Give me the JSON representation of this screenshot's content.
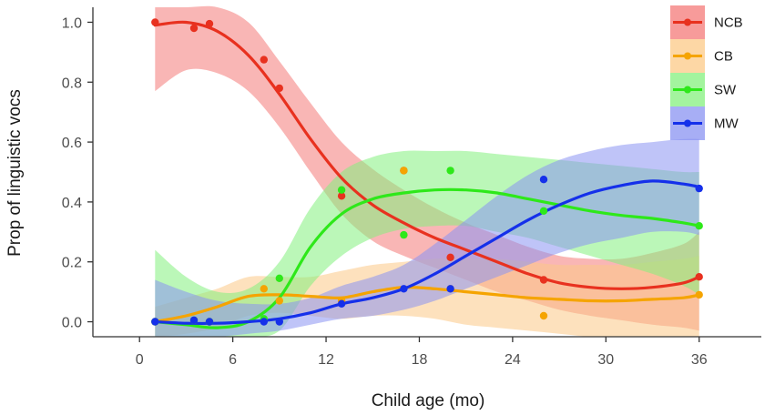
{
  "chart_data": {
    "type": "scatter",
    "title": "",
    "xlabel": "Child age (mo)",
    "ylabel": "Prop of linguistic vocs",
    "xlim": [
      -3,
      40
    ],
    "ylim": [
      -0.05,
      1.05
    ],
    "xticks": [
      0,
      6,
      12,
      18,
      24,
      30,
      36
    ],
    "xtick_labels": [
      "0",
      "6",
      "12",
      "18",
      "24",
      "30",
      "36"
    ],
    "yticks": [
      0,
      0.2,
      0.4,
      0.6,
      0.8,
      1.0
    ],
    "ytick_labels": [
      "0.0",
      "0.2",
      "0.4",
      "0.6",
      "0.8",
      "1.0"
    ],
    "grid": false,
    "legend_position": "top-right",
    "smoothing": "loess with confidence band",
    "series": [
      {
        "name": "NCB",
        "color": "#e8311f",
        "band_color": "#f47a78",
        "points": [
          [
            1,
            1.0
          ],
          [
            3.5,
            0.98
          ],
          [
            4.5,
            0.995
          ],
          [
            8,
            0.875
          ],
          [
            9,
            0.78
          ],
          [
            13,
            0.42
          ],
          [
            17,
            0.505
          ],
          [
            20,
            0.215
          ],
          [
            26,
            0.14
          ],
          [
            36,
            0.15
          ]
        ],
        "curve": [
          [
            1,
            0.99
          ],
          [
            3,
            1.0
          ],
          [
            5,
            0.97
          ],
          [
            7,
            0.89
          ],
          [
            9,
            0.76
          ],
          [
            11,
            0.61
          ],
          [
            13,
            0.48
          ],
          [
            15,
            0.39
          ],
          [
            17,
            0.33
          ],
          [
            19,
            0.28
          ],
          [
            21,
            0.24
          ],
          [
            23,
            0.2
          ],
          [
            25,
            0.16
          ],
          [
            27,
            0.13
          ],
          [
            29,
            0.115
          ],
          [
            31,
            0.11
          ],
          [
            33,
            0.115
          ],
          [
            35,
            0.13
          ],
          [
            36,
            0.15
          ]
        ],
        "lower": [
          [
            1,
            0.77
          ],
          [
            3,
            0.84
          ],
          [
            5,
            0.83
          ],
          [
            7,
            0.77
          ],
          [
            9,
            0.65
          ],
          [
            11,
            0.5
          ],
          [
            13,
            0.36
          ],
          [
            15,
            0.27
          ],
          [
            17,
            0.22
          ],
          [
            19,
            0.18
          ],
          [
            21,
            0.14
          ],
          [
            23,
            0.1
          ],
          [
            25,
            0.07
          ],
          [
            27,
            0.04
          ],
          [
            29,
            0.02
          ],
          [
            31,
            0.005
          ],
          [
            33,
            -0.01
          ],
          [
            35,
            -0.02
          ],
          [
            36,
            -0.03
          ]
        ],
        "upper": [
          [
            1,
            1.05
          ],
          [
            3,
            1.05
          ],
          [
            5,
            1.05
          ],
          [
            7,
            1.0
          ],
          [
            9,
            0.87
          ],
          [
            11,
            0.73
          ],
          [
            13,
            0.6
          ],
          [
            15,
            0.51
          ],
          [
            17,
            0.44
          ],
          [
            19,
            0.38
          ],
          [
            21,
            0.33
          ],
          [
            23,
            0.29
          ],
          [
            25,
            0.25
          ],
          [
            27,
            0.22
          ],
          [
            29,
            0.21
          ],
          [
            31,
            0.21
          ],
          [
            33,
            0.23
          ],
          [
            35,
            0.26
          ],
          [
            36,
            0.3
          ]
        ]
      },
      {
        "name": "CB",
        "color": "#f5a400",
        "band_color": "#fcc987",
        "points": [
          [
            1,
            0.0
          ],
          [
            3.5,
            0.005
          ],
          [
            4.5,
            0.0
          ],
          [
            8,
            0.11
          ],
          [
            9,
            0.07
          ],
          [
            13,
            0.07
          ],
          [
            17,
            0.505
          ],
          [
            20,
            0.11
          ],
          [
            26,
            0.02
          ],
          [
            36,
            0.09
          ]
        ],
        "curve": [
          [
            1,
            0.0
          ],
          [
            3,
            0.02
          ],
          [
            5,
            0.05
          ],
          [
            7,
            0.085
          ],
          [
            9,
            0.09
          ],
          [
            11,
            0.085
          ],
          [
            13,
            0.08
          ],
          [
            15,
            0.1
          ],
          [
            17,
            0.115
          ],
          [
            19,
            0.11
          ],
          [
            21,
            0.1
          ],
          [
            23,
            0.09
          ],
          [
            25,
            0.08
          ],
          [
            27,
            0.075
          ],
          [
            29,
            0.07
          ],
          [
            31,
            0.07
          ],
          [
            33,
            0.075
          ],
          [
            35,
            0.08
          ],
          [
            36,
            0.09
          ]
        ],
        "lower": [
          [
            1,
            -0.05
          ],
          [
            3,
            -0.04
          ],
          [
            5,
            -0.02
          ],
          [
            7,
            0.02
          ],
          [
            9,
            0.03
          ],
          [
            11,
            0.02
          ],
          [
            13,
            0.01
          ],
          [
            15,
            0.02
          ],
          [
            17,
            0.02
          ],
          [
            19,
            0.01
          ],
          [
            21,
            -0.01
          ],
          [
            23,
            -0.02
          ],
          [
            25,
            -0.03
          ],
          [
            27,
            -0.04
          ],
          [
            29,
            -0.05
          ],
          [
            31,
            -0.05
          ],
          [
            33,
            -0.05
          ],
          [
            35,
            -0.05
          ],
          [
            36,
            -0.05
          ]
        ],
        "upper": [
          [
            1,
            0.05
          ],
          [
            3,
            0.08
          ],
          [
            5,
            0.11
          ],
          [
            7,
            0.15
          ],
          [
            9,
            0.15
          ],
          [
            11,
            0.15
          ],
          [
            13,
            0.17
          ],
          [
            15,
            0.19
          ],
          [
            17,
            0.2
          ],
          [
            19,
            0.21
          ],
          [
            21,
            0.21
          ],
          [
            23,
            0.21
          ],
          [
            25,
            0.2
          ],
          [
            27,
            0.19
          ],
          [
            29,
            0.19
          ],
          [
            31,
            0.19
          ],
          [
            33,
            0.2
          ],
          [
            35,
            0.21
          ],
          [
            36,
            0.22
          ]
        ]
      },
      {
        "name": "SW",
        "color": "#2ee81a",
        "band_color": "#84f07e",
        "points": [
          [
            1,
            0.0
          ],
          [
            3.5,
            0.005
          ],
          [
            4.5,
            0.0
          ],
          [
            8,
            0.01
          ],
          [
            9,
            0.145
          ],
          [
            13,
            0.44
          ],
          [
            17,
            0.29
          ],
          [
            20,
            0.505
          ],
          [
            26,
            0.37
          ],
          [
            36,
            0.32
          ]
        ],
        "curve": [
          [
            1,
            0.0
          ],
          [
            3,
            -0.01
          ],
          [
            5,
            -0.02
          ],
          [
            7,
            0.0
          ],
          [
            9,
            0.08
          ],
          [
            11,
            0.25
          ],
          [
            13,
            0.36
          ],
          [
            15,
            0.41
          ],
          [
            17,
            0.43
          ],
          [
            19,
            0.44
          ],
          [
            21,
            0.44
          ],
          [
            23,
            0.43
          ],
          [
            25,
            0.41
          ],
          [
            27,
            0.39
          ],
          [
            29,
            0.37
          ],
          [
            31,
            0.355
          ],
          [
            33,
            0.345
          ],
          [
            35,
            0.33
          ],
          [
            36,
            0.32
          ]
        ],
        "lower": [
          [
            1,
            -0.05
          ],
          [
            3,
            -0.05
          ],
          [
            5,
            -0.05
          ],
          [
            7,
            -0.05
          ],
          [
            9,
            -0.03
          ],
          [
            11,
            0.12
          ],
          [
            13,
            0.22
          ],
          [
            15,
            0.28
          ],
          [
            17,
            0.31
          ],
          [
            19,
            0.32
          ],
          [
            21,
            0.32
          ],
          [
            23,
            0.3
          ],
          [
            25,
            0.28
          ],
          [
            27,
            0.25
          ],
          [
            29,
            0.22
          ],
          [
            31,
            0.19
          ],
          [
            33,
            0.16
          ],
          [
            35,
            0.12
          ],
          [
            36,
            0.09
          ]
        ],
        "upper": [
          [
            1,
            0.24
          ],
          [
            3,
            0.15
          ],
          [
            5,
            0.1
          ],
          [
            7,
            0.11
          ],
          [
            9,
            0.2
          ],
          [
            11,
            0.38
          ],
          [
            13,
            0.5
          ],
          [
            15,
            0.55
          ],
          [
            17,
            0.57
          ],
          [
            19,
            0.57
          ],
          [
            21,
            0.57
          ],
          [
            23,
            0.56
          ],
          [
            25,
            0.55
          ],
          [
            27,
            0.54
          ],
          [
            29,
            0.53
          ],
          [
            31,
            0.52
          ],
          [
            33,
            0.51
          ],
          [
            35,
            0.5
          ],
          [
            36,
            0.5
          ]
        ]
      },
      {
        "name": "MW",
        "color": "#1530ea",
        "band_color": "#8a93f2",
        "points": [
          [
            1,
            0.0
          ],
          [
            3.5,
            0.005
          ],
          [
            4.5,
            0.0
          ],
          [
            8,
            0.0
          ],
          [
            9,
            0.0
          ],
          [
            13,
            0.06
          ],
          [
            17,
            0.11
          ],
          [
            20,
            0.11
          ],
          [
            26,
            0.475
          ],
          [
            36,
            0.445
          ]
        ],
        "curve": [
          [
            1,
            0.0
          ],
          [
            3,
            -0.005
          ],
          [
            5,
            -0.005
          ],
          [
            7,
            0.0
          ],
          [
            9,
            0.01
          ],
          [
            11,
            0.03
          ],
          [
            13,
            0.06
          ],
          [
            15,
            0.08
          ],
          [
            17,
            0.11
          ],
          [
            19,
            0.16
          ],
          [
            21,
            0.22
          ],
          [
            23,
            0.28
          ],
          [
            25,
            0.34
          ],
          [
            27,
            0.39
          ],
          [
            29,
            0.43
          ],
          [
            31,
            0.455
          ],
          [
            33,
            0.47
          ],
          [
            35,
            0.46
          ],
          [
            36,
            0.45
          ]
        ],
        "lower": [
          [
            1,
            -0.05
          ],
          [
            3,
            -0.05
          ],
          [
            5,
            -0.05
          ],
          [
            7,
            -0.04
          ],
          [
            9,
            -0.03
          ],
          [
            11,
            -0.01
          ],
          [
            13,
            0.01
          ],
          [
            15,
            0.02
          ],
          [
            17,
            0.04
          ],
          [
            19,
            0.07
          ],
          [
            21,
            0.11
          ],
          [
            23,
            0.15
          ],
          [
            25,
            0.19
          ],
          [
            27,
            0.23
          ],
          [
            29,
            0.26
          ],
          [
            31,
            0.28
          ],
          [
            33,
            0.3
          ],
          [
            35,
            0.3
          ],
          [
            36,
            0.29
          ]
        ],
        "upper": [
          [
            1,
            0.14
          ],
          [
            3,
            0.1
          ],
          [
            5,
            0.07
          ],
          [
            7,
            0.06
          ],
          [
            9,
            0.06
          ],
          [
            11,
            0.08
          ],
          [
            13,
            0.12
          ],
          [
            15,
            0.15
          ],
          [
            17,
            0.19
          ],
          [
            19,
            0.26
          ],
          [
            21,
            0.34
          ],
          [
            23,
            0.42
          ],
          [
            25,
            0.49
          ],
          [
            27,
            0.54
          ],
          [
            29,
            0.57
          ],
          [
            31,
            0.59
          ],
          [
            33,
            0.6
          ],
          [
            35,
            0.61
          ],
          [
            36,
            0.61
          ]
        ]
      }
    ]
  }
}
